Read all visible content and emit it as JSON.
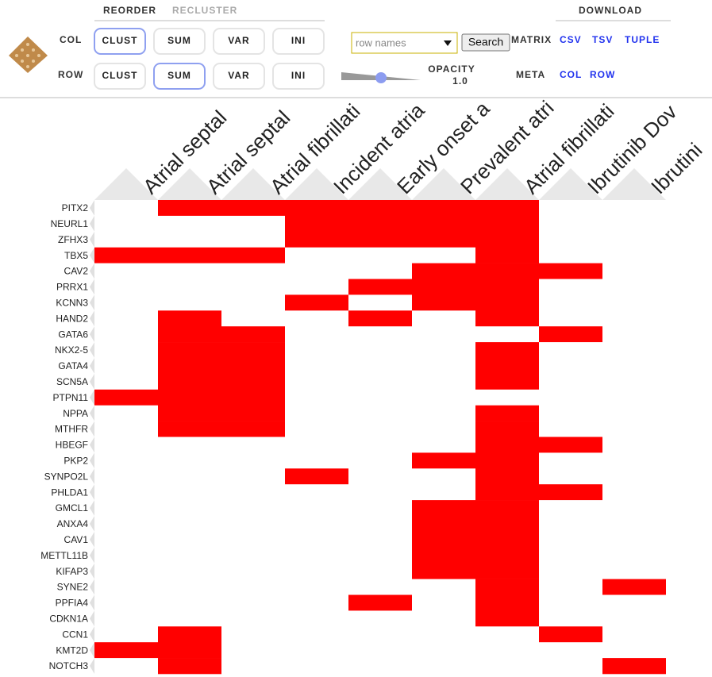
{
  "toolbar": {
    "reorder": "REORDER",
    "recluster": "RECLUSTER",
    "col_label": "COL",
    "row_label": "ROW",
    "col_buttons": [
      "CLUST",
      "SUM",
      "VAR",
      "INI"
    ],
    "row_buttons": [
      "CLUST",
      "SUM",
      "VAR",
      "INI"
    ],
    "search_placeholder": "row names",
    "search_button": "Search",
    "opacity_label": "OPACITY",
    "opacity_value": "1.0",
    "download": "DOWNLOAD",
    "matrix_label": "MATRIX",
    "matrix_links": [
      "CSV",
      "TSV",
      "TUPLE"
    ],
    "meta_label": "META",
    "meta_links": [
      "COL",
      "ROW"
    ]
  },
  "heatmap": {
    "color": "#ff0000",
    "columns": [
      "Atrial septal",
      "Atrial septal",
      "Atrial fibrillati",
      "Incident atria",
      "Early onset a",
      "Prevalent atri",
      "Atrial fibrillati",
      "Ibrutinib Dov",
      "Ibrutini"
    ],
    "rows": [
      "PITX2",
      "NEURL1",
      "ZFHX3",
      "TBX5",
      "CAV2",
      "PRRX1",
      "KCNN3",
      "HAND2",
      "GATA6",
      "NKX2-5",
      "GATA4",
      "SCN5A",
      "PTPN11",
      "NPPA",
      "MTHFR",
      "HBEGF",
      "PKP2",
      "SYNPO2L",
      "PHLDA1",
      "GMCL1",
      "ANXA4",
      "CAV1",
      "METTL11B",
      "KIFAP3",
      "SYNE2",
      "PPFIA4",
      "CDKN1A",
      "CCN1",
      "KMT2D",
      "NOTCH3"
    ],
    "matrix": [
      [
        0,
        1,
        1,
        1,
        1,
        1,
        1,
        0,
        0
      ],
      [
        0,
        0,
        0,
        1,
        1,
        1,
        1,
        0,
        0
      ],
      [
        0,
        0,
        0,
        1,
        1,
        1,
        1,
        0,
        0
      ],
      [
        1,
        1,
        1,
        0,
        0,
        0,
        1,
        0,
        0
      ],
      [
        0,
        0,
        0,
        0,
        0,
        1,
        1,
        1,
        0
      ],
      [
        0,
        0,
        0,
        0,
        1,
        1,
        1,
        0,
        0
      ],
      [
        0,
        0,
        0,
        1,
        0,
        1,
        1,
        0,
        0
      ],
      [
        0,
        1,
        0,
        0,
        1,
        0,
        1,
        0,
        0
      ],
      [
        0,
        1,
        1,
        0,
        0,
        0,
        0,
        1,
        0
      ],
      [
        0,
        1,
        1,
        0,
        0,
        0,
        1,
        0,
        0
      ],
      [
        0,
        1,
        1,
        0,
        0,
        0,
        1,
        0,
        0
      ],
      [
        0,
        1,
        1,
        0,
        0,
        0,
        1,
        0,
        0
      ],
      [
        1,
        1,
        1,
        0,
        0,
        0,
        0,
        0,
        0
      ],
      [
        0,
        1,
        1,
        0,
        0,
        0,
        1,
        0,
        0
      ],
      [
        0,
        1,
        1,
        0,
        0,
        0,
        1,
        0,
        0
      ],
      [
        0,
        0,
        0,
        0,
        0,
        0,
        1,
        1,
        0
      ],
      [
        0,
        0,
        0,
        0,
        0,
        1,
        1,
        0,
        0
      ],
      [
        0,
        0,
        0,
        1,
        0,
        0,
        1,
        0,
        0
      ],
      [
        0,
        0,
        0,
        0,
        0,
        0,
        1,
        1,
        0
      ],
      [
        0,
        0,
        0,
        0,
        0,
        1,
        1,
        0,
        0
      ],
      [
        0,
        0,
        0,
        0,
        0,
        1,
        1,
        0,
        0
      ],
      [
        0,
        0,
        0,
        0,
        0,
        1,
        1,
        0,
        0
      ],
      [
        0,
        0,
        0,
        0,
        0,
        1,
        1,
        0,
        0
      ],
      [
        0,
        0,
        0,
        0,
        0,
        1,
        1,
        0,
        0
      ],
      [
        0,
        0,
        0,
        0,
        0,
        0,
        1,
        0,
        1
      ],
      [
        0,
        0,
        0,
        0,
        1,
        0,
        1,
        0,
        0
      ],
      [
        0,
        0,
        0,
        0,
        0,
        0,
        1,
        0,
        0
      ],
      [
        0,
        1,
        0,
        0,
        0,
        0,
        0,
        1,
        0
      ],
      [
        1,
        1,
        0,
        0,
        0,
        0,
        0,
        0,
        0
      ],
      [
        0,
        1,
        0,
        0,
        0,
        0,
        0,
        0,
        1
      ]
    ]
  }
}
